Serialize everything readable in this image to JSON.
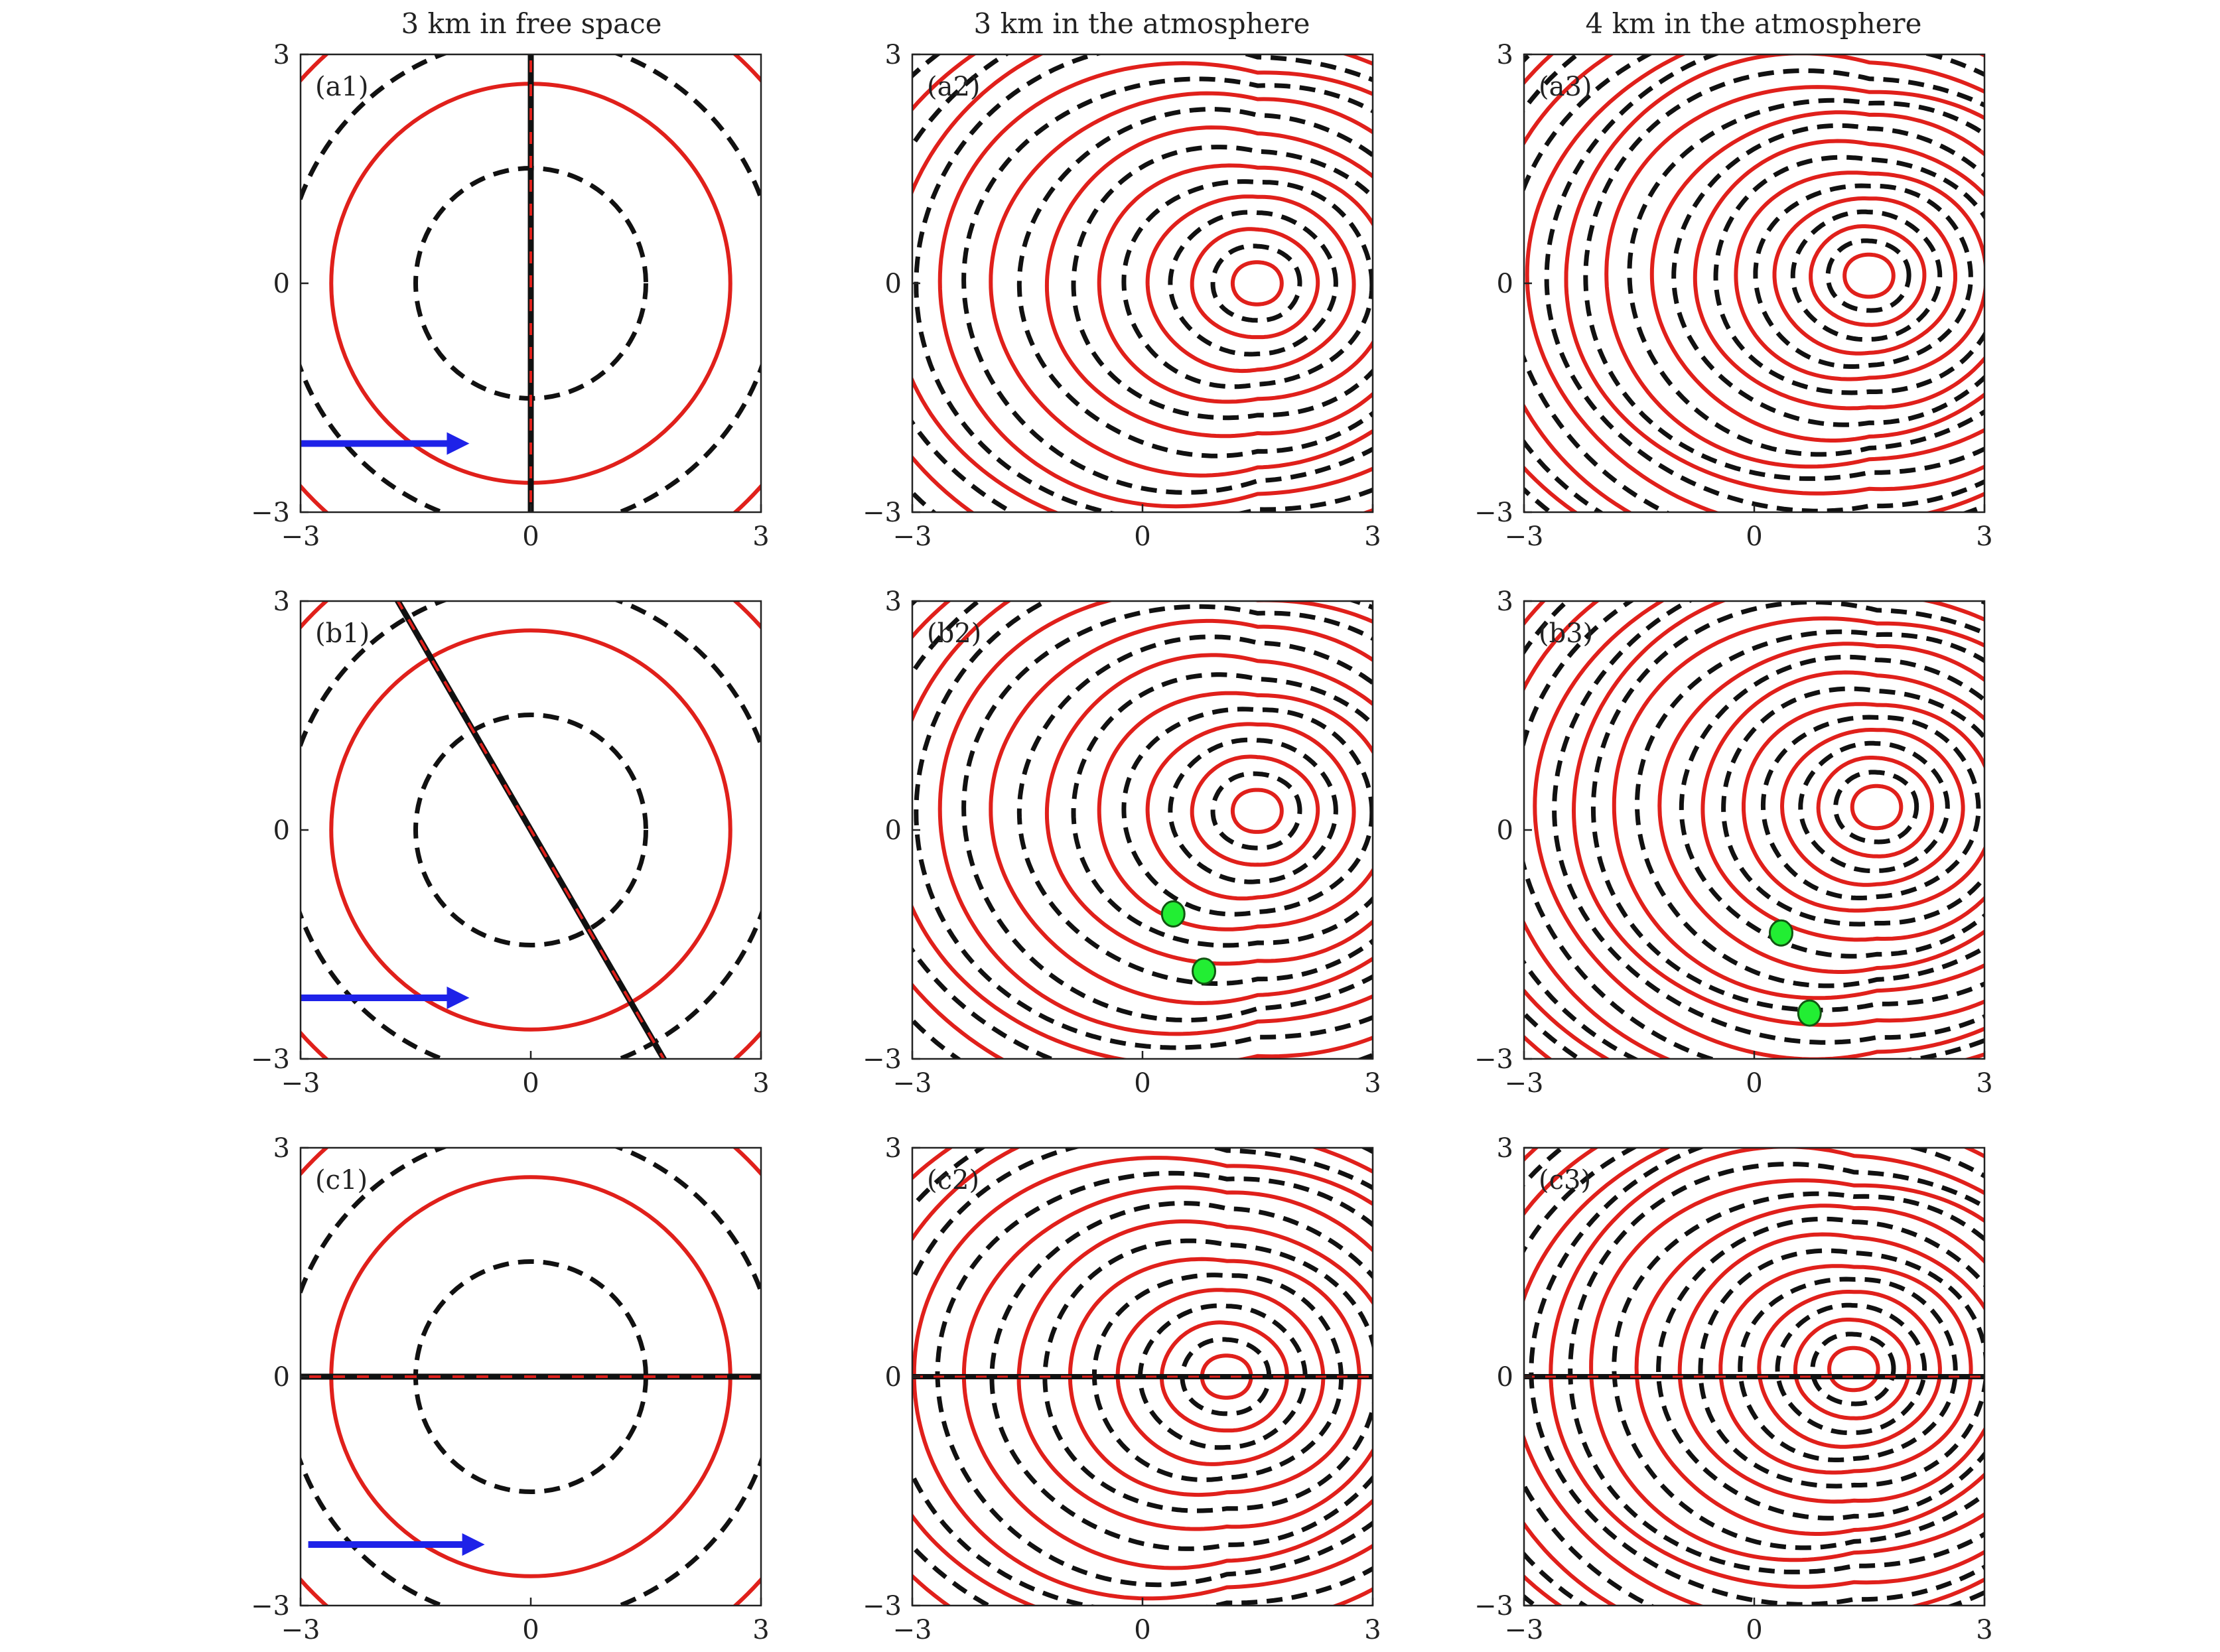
{
  "column_titles": [
    "3 km in free space",
    "3 km in the atmosphere",
    "4 km in the atmosphere"
  ],
  "colors": {
    "solid_contour": "#e0201b",
    "dashed_contour": "#111111",
    "arrow": "#1e22e8",
    "singularity": "#22ee33"
  },
  "chart_data": [
    {
      "id": "a1",
      "type": "contour",
      "label": "(a1)",
      "xlim": [
        -3,
        3
      ],
      "ylim": [
        -3,
        3
      ],
      "xticks": [
        "−3",
        "0",
        "3"
      ],
      "yticks": [
        "−3",
        "0",
        "3"
      ],
      "style": "free",
      "solid_radii": [
        2.6,
        4.0
      ],
      "dashed_radii": [
        1.5,
        3.2
      ],
      "line_angle_deg": 90,
      "arrow": {
        "x": [
          -3.0,
          -0.8
        ],
        "y": [
          -2.1,
          -2.1
        ]
      }
    },
    {
      "id": "a2",
      "type": "contour",
      "label": "(a2)",
      "xlim": [
        -3,
        3
      ],
      "ylim": [
        -3,
        3
      ],
      "xticks": [
        "−3",
        "0",
        "3"
      ],
      "yticks": [
        "−3",
        "0",
        "3"
      ],
      "style": "atmo",
      "center": [
        1.5,
        0.0
      ],
      "ring_count": 9,
      "ring_step": 0.42,
      "asym": 0.32
    },
    {
      "id": "a3",
      "type": "contour",
      "label": "(a3)",
      "xlim": [
        -3,
        3
      ],
      "ylim": [
        -3,
        3
      ],
      "xticks": [
        "−3",
        "0",
        "3"
      ],
      "yticks": [
        "−3",
        "0",
        "3"
      ],
      "style": "atmo",
      "center": [
        1.5,
        0.1
      ],
      "ring_count": 12,
      "ring_step": 0.36,
      "asym": 0.26
    },
    {
      "id": "b1",
      "type": "contour",
      "label": "(b1)",
      "xlim": [
        -3,
        3
      ],
      "ylim": [
        -3,
        3
      ],
      "xticks": [
        "−3",
        "0",
        "3"
      ],
      "yticks": [
        "−3",
        "0",
        "3"
      ],
      "style": "free",
      "solid_radii": [
        2.6,
        4.0
      ],
      "dashed_radii": [
        1.5,
        3.2
      ],
      "line_angle_deg": -60,
      "arrow": {
        "x": [
          -3.0,
          -0.8
        ],
        "y": [
          -2.2,
          -2.2
        ]
      }
    },
    {
      "id": "b2",
      "type": "contour",
      "label": "(b2)",
      "xlim": [
        -3,
        3
      ],
      "ylim": [
        -3,
        3
      ],
      "xticks": [
        "−3",
        "0",
        "3"
      ],
      "yticks": [
        "−3",
        "0",
        "3"
      ],
      "style": "atmo",
      "center": [
        1.5,
        0.25
      ],
      "ring_count": 9,
      "ring_step": 0.42,
      "asym": 0.32,
      "singularities": [
        {
          "x": 0.4,
          "y": -1.1
        },
        {
          "x": 0.8,
          "y": -1.85
        }
      ]
    },
    {
      "id": "b3",
      "type": "contour",
      "label": "(b3)",
      "xlim": [
        -3,
        3
      ],
      "ylim": [
        -3,
        3
      ],
      "xticks": [
        "−3",
        "0",
        "3"
      ],
      "yticks": [
        "−3",
        "0",
        "3"
      ],
      "style": "atmo",
      "center": [
        1.6,
        0.3
      ],
      "ring_count": 12,
      "ring_step": 0.36,
      "asym": 0.26,
      "singularities": [
        {
          "x": 0.35,
          "y": -1.35
        },
        {
          "x": 0.72,
          "y": -2.4
        }
      ]
    },
    {
      "id": "c1",
      "type": "contour",
      "label": "(c1)",
      "xlim": [
        -3,
        3
      ],
      "ylim": [
        -3,
        3
      ],
      "xticks": [
        "−3",
        "0",
        "3"
      ],
      "yticks": [
        "−3",
        "0",
        "3"
      ],
      "style": "free",
      "solid_radii": [
        2.6,
        4.0
      ],
      "dashed_radii": [
        1.5,
        3.2
      ],
      "line_angle_deg": 0,
      "arrow": {
        "x": [
          -2.9,
          -0.6
        ],
        "y": [
          -2.2,
          -2.2
        ]
      }
    },
    {
      "id": "c2",
      "type": "contour",
      "label": "(c2)",
      "xlim": [
        -3,
        3
      ],
      "ylim": [
        -3,
        3
      ],
      "xticks": [
        "−3",
        "0",
        "3"
      ],
      "yticks": [
        "−3",
        "0",
        "3"
      ],
      "style": "atmo",
      "center": [
        1.1,
        0.0
      ],
      "ring_count": 9,
      "ring_step": 0.42,
      "asym": 0.3,
      "h_line": true
    },
    {
      "id": "c3",
      "type": "contour",
      "label": "(c3)",
      "xlim": [
        -3,
        3
      ],
      "ylim": [
        -3,
        3
      ],
      "xticks": [
        "−3",
        "0",
        "3"
      ],
      "yticks": [
        "−3",
        "0",
        "3"
      ],
      "style": "atmo",
      "center": [
        1.3,
        0.1
      ],
      "ring_count": 12,
      "ring_step": 0.36,
      "asym": 0.26,
      "h_line": true
    }
  ]
}
